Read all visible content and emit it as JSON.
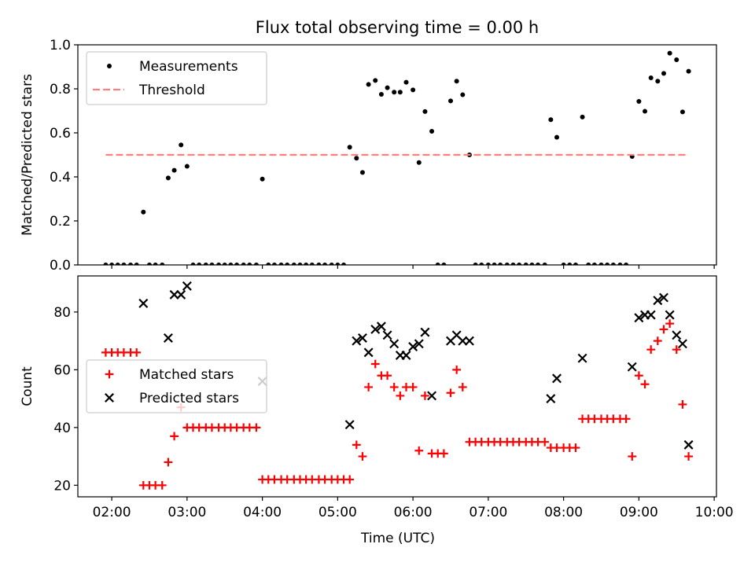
{
  "figure": {
    "title": "Flux total observing time = 0.00 h"
  },
  "chart_data": [
    {
      "type": "scatter",
      "ylabel": "Matched/Predicted stars",
      "xlabel": "",
      "x_unit": "hours UTC",
      "xlim": [
        1.55,
        10.03
      ],
      "ylim": [
        0.0,
        1.0
      ],
      "yticks": [
        0.0,
        0.2,
        0.4,
        0.6,
        0.8,
        1.0
      ],
      "yticklabels": [
        "0.0",
        "0.2",
        "0.4",
        "0.6",
        "0.8",
        "1.0"
      ],
      "grid": false,
      "legend_location": "upper left",
      "series": [
        {
          "name": "Measurements",
          "marker": "dot",
          "color": "#000000",
          "points": [
            [
              1.92,
              0.0
            ],
            [
              2.0,
              0.0
            ],
            [
              2.08,
              0.0
            ],
            [
              2.16,
              0.0
            ],
            [
              2.25,
              0.0
            ],
            [
              2.33,
              0.0
            ],
            [
              2.42,
              0.24
            ],
            [
              2.5,
              0.0
            ],
            [
              2.58,
              0.0
            ],
            [
              2.67,
              0.0
            ],
            [
              2.75,
              0.395
            ],
            [
              2.83,
              0.43
            ],
            [
              2.92,
              0.545
            ],
            [
              3.0,
              0.448
            ],
            [
              3.08,
              0.0
            ],
            [
              3.16,
              0.0
            ],
            [
              3.25,
              0.0
            ],
            [
              3.33,
              0.0
            ],
            [
              3.42,
              0.0
            ],
            [
              3.5,
              0.0
            ],
            [
              3.58,
              0.0
            ],
            [
              3.66,
              0.0
            ],
            [
              3.75,
              0.0
            ],
            [
              3.83,
              0.0
            ],
            [
              3.92,
              0.0
            ],
            [
              4.0,
              0.39
            ],
            [
              4.08,
              0.0
            ],
            [
              4.16,
              0.0
            ],
            [
              4.25,
              0.0
            ],
            [
              4.33,
              0.0
            ],
            [
              4.42,
              0.0
            ],
            [
              4.5,
              0.0
            ],
            [
              4.58,
              0.0
            ],
            [
              4.66,
              0.0
            ],
            [
              4.75,
              0.0
            ],
            [
              4.83,
              0.0
            ],
            [
              4.92,
              0.0
            ],
            [
              5.0,
              0.0
            ],
            [
              5.08,
              0.0
            ],
            [
              5.16,
              0.535
            ],
            [
              5.25,
              0.485
            ],
            [
              5.33,
              0.42
            ],
            [
              5.41,
              0.82
            ],
            [
              5.5,
              0.838
            ],
            [
              5.58,
              0.775
            ],
            [
              5.66,
              0.805
            ],
            [
              5.75,
              0.785
            ],
            [
              5.83,
              0.785
            ],
            [
              5.91,
              0.83
            ],
            [
              6.0,
              0.795
            ],
            [
              6.08,
              0.465
            ],
            [
              6.16,
              0.697
            ],
            [
              6.25,
              0.607
            ],
            [
              6.33,
              0.0
            ],
            [
              6.41,
              0.0
            ],
            [
              6.5,
              0.745
            ],
            [
              6.58,
              0.835
            ],
            [
              6.66,
              0.773
            ],
            [
              6.75,
              0.5
            ],
            [
              6.83,
              0.0
            ],
            [
              6.91,
              0.0
            ],
            [
              7.0,
              0.0
            ],
            [
              7.08,
              0.0
            ],
            [
              7.16,
              0.0
            ],
            [
              7.25,
              0.0
            ],
            [
              7.33,
              0.0
            ],
            [
              7.41,
              0.0
            ],
            [
              7.5,
              0.0
            ],
            [
              7.58,
              0.0
            ],
            [
              7.66,
              0.0
            ],
            [
              7.75,
              0.0
            ],
            [
              7.83,
              0.66
            ],
            [
              7.91,
              0.58
            ],
            [
              8.0,
              0.0
            ],
            [
              8.08,
              0.0
            ],
            [
              8.16,
              0.0
            ],
            [
              8.25,
              0.672
            ],
            [
              8.33,
              0.0
            ],
            [
              8.41,
              0.0
            ],
            [
              8.5,
              0.0
            ],
            [
              8.58,
              0.0
            ],
            [
              8.66,
              0.0
            ],
            [
              8.75,
              0.0
            ],
            [
              8.83,
              0.0
            ],
            [
              8.91,
              0.493
            ],
            [
              9.0,
              0.743
            ],
            [
              9.08,
              0.698
            ],
            [
              9.16,
              0.85
            ],
            [
              9.25,
              0.835
            ],
            [
              9.33,
              0.87
            ],
            [
              9.41,
              0.962
            ],
            [
              9.5,
              0.932
            ],
            [
              9.58,
              0.695
            ],
            [
              9.66,
              0.88
            ]
          ]
        },
        {
          "name": "Threshold",
          "kind": "dashed-line",
          "color": "#ff7f7f",
          "points": [
            [
              1.92,
              0.5
            ],
            [
              9.66,
              0.5
            ]
          ]
        }
      ]
    },
    {
      "type": "scatter",
      "ylabel": "Count",
      "xlabel": "Time (UTC)",
      "x_unit": "hours UTC",
      "xlim": [
        1.55,
        10.03
      ],
      "ylim": [
        16.0,
        92.5
      ],
      "xticks": [
        2,
        3,
        4,
        5,
        6,
        7,
        8,
        9,
        10
      ],
      "xticklabels": [
        "02:00",
        "03:00",
        "04:00",
        "05:00",
        "06:00",
        "07:00",
        "08:00",
        "09:00",
        "10:00"
      ],
      "yticks": [
        20,
        40,
        60,
        80
      ],
      "yticklabels": [
        "20",
        "40",
        "60",
        "80"
      ],
      "grid": false,
      "legend_location": "center left",
      "series": [
        {
          "name": "Matched stars",
          "marker": "plus",
          "color": "#ff0000",
          "points": [
            [
              1.92,
              66
            ],
            [
              2.0,
              66
            ],
            [
              2.08,
              66
            ],
            [
              2.16,
              66
            ],
            [
              2.25,
              66
            ],
            [
              2.33,
              66
            ],
            [
              2.42,
              20
            ],
            [
              2.5,
              20
            ],
            [
              2.58,
              20
            ],
            [
              2.67,
              20
            ],
            [
              2.75,
              28
            ],
            [
              2.83,
              37
            ],
            [
              2.92,
              47
            ],
            [
              3.0,
              40
            ],
            [
              3.08,
              40
            ],
            [
              3.16,
              40
            ],
            [
              3.25,
              40
            ],
            [
              3.33,
              40
            ],
            [
              3.42,
              40
            ],
            [
              3.5,
              40
            ],
            [
              3.58,
              40
            ],
            [
              3.66,
              40
            ],
            [
              3.75,
              40
            ],
            [
              3.83,
              40
            ],
            [
              3.92,
              40
            ],
            [
              4.0,
              22
            ],
            [
              4.08,
              22
            ],
            [
              4.16,
              22
            ],
            [
              4.25,
              22
            ],
            [
              4.33,
              22
            ],
            [
              4.42,
              22
            ],
            [
              4.5,
              22
            ],
            [
              4.58,
              22
            ],
            [
              4.66,
              22
            ],
            [
              4.75,
              22
            ],
            [
              4.83,
              22
            ],
            [
              4.92,
              22
            ],
            [
              5.0,
              22
            ],
            [
              5.08,
              22
            ],
            [
              5.16,
              22
            ],
            [
              5.25,
              34
            ],
            [
              5.33,
              30
            ],
            [
              5.41,
              54
            ],
            [
              5.5,
              62
            ],
            [
              5.58,
              58
            ],
            [
              5.66,
              58
            ],
            [
              5.75,
              54
            ],
            [
              5.83,
              51
            ],
            [
              5.91,
              54
            ],
            [
              6.0,
              54
            ],
            [
              6.08,
              32
            ],
            [
              6.16,
              51
            ],
            [
              6.25,
              31
            ],
            [
              6.33,
              31
            ],
            [
              6.41,
              31
            ],
            [
              6.5,
              52
            ],
            [
              6.58,
              60
            ],
            [
              6.66,
              54
            ],
            [
              6.75,
              35
            ],
            [
              6.83,
              35
            ],
            [
              6.91,
              35
            ],
            [
              7.0,
              35
            ],
            [
              7.08,
              35
            ],
            [
              7.16,
              35
            ],
            [
              7.25,
              35
            ],
            [
              7.33,
              35
            ],
            [
              7.41,
              35
            ],
            [
              7.5,
              35
            ],
            [
              7.58,
              35
            ],
            [
              7.66,
              35
            ],
            [
              7.75,
              35
            ],
            [
              7.83,
              33
            ],
            [
              7.91,
              33
            ],
            [
              8.0,
              33
            ],
            [
              8.08,
              33
            ],
            [
              8.16,
              33
            ],
            [
              8.25,
              43
            ],
            [
              8.33,
              43
            ],
            [
              8.41,
              43
            ],
            [
              8.5,
              43
            ],
            [
              8.58,
              43
            ],
            [
              8.66,
              43
            ],
            [
              8.75,
              43
            ],
            [
              8.83,
              43
            ],
            [
              8.91,
              30
            ],
            [
              9.0,
              58
            ],
            [
              9.08,
              55
            ],
            [
              9.16,
              67
            ],
            [
              9.25,
              70
            ],
            [
              9.33,
              74
            ],
            [
              9.41,
              76
            ],
            [
              9.5,
              67
            ],
            [
              9.58,
              48
            ],
            [
              9.66,
              30
            ]
          ]
        },
        {
          "name": "Predicted stars",
          "marker": "x",
          "color": "#000000",
          "points": [
            [
              2.42,
              83
            ],
            [
              2.75,
              71
            ],
            [
              2.83,
              86
            ],
            [
              2.92,
              86
            ],
            [
              3.0,
              89
            ],
            [
              4.0,
              56
            ],
            [
              5.16,
              41
            ],
            [
              5.25,
              70
            ],
            [
              5.33,
              71
            ],
            [
              5.41,
              66
            ],
            [
              5.5,
              74
            ],
            [
              5.58,
              75
            ],
            [
              5.66,
              72
            ],
            [
              5.75,
              69
            ],
            [
              5.83,
              65
            ],
            [
              5.91,
              65
            ],
            [
              6.0,
              68
            ],
            [
              6.08,
              69
            ],
            [
              6.16,
              73
            ],
            [
              6.25,
              51
            ],
            [
              6.5,
              70
            ],
            [
              6.58,
              72
            ],
            [
              6.66,
              70
            ],
            [
              6.75,
              70
            ],
            [
              7.83,
              50
            ],
            [
              7.91,
              57
            ],
            [
              8.25,
              64
            ],
            [
              8.91,
              61
            ],
            [
              9.0,
              78
            ],
            [
              9.08,
              79
            ],
            [
              9.16,
              79
            ],
            [
              9.25,
              84
            ],
            [
              9.33,
              85
            ],
            [
              9.41,
              79
            ],
            [
              9.5,
              72
            ],
            [
              9.58,
              69
            ],
            [
              9.66,
              34
            ]
          ]
        }
      ]
    }
  ]
}
